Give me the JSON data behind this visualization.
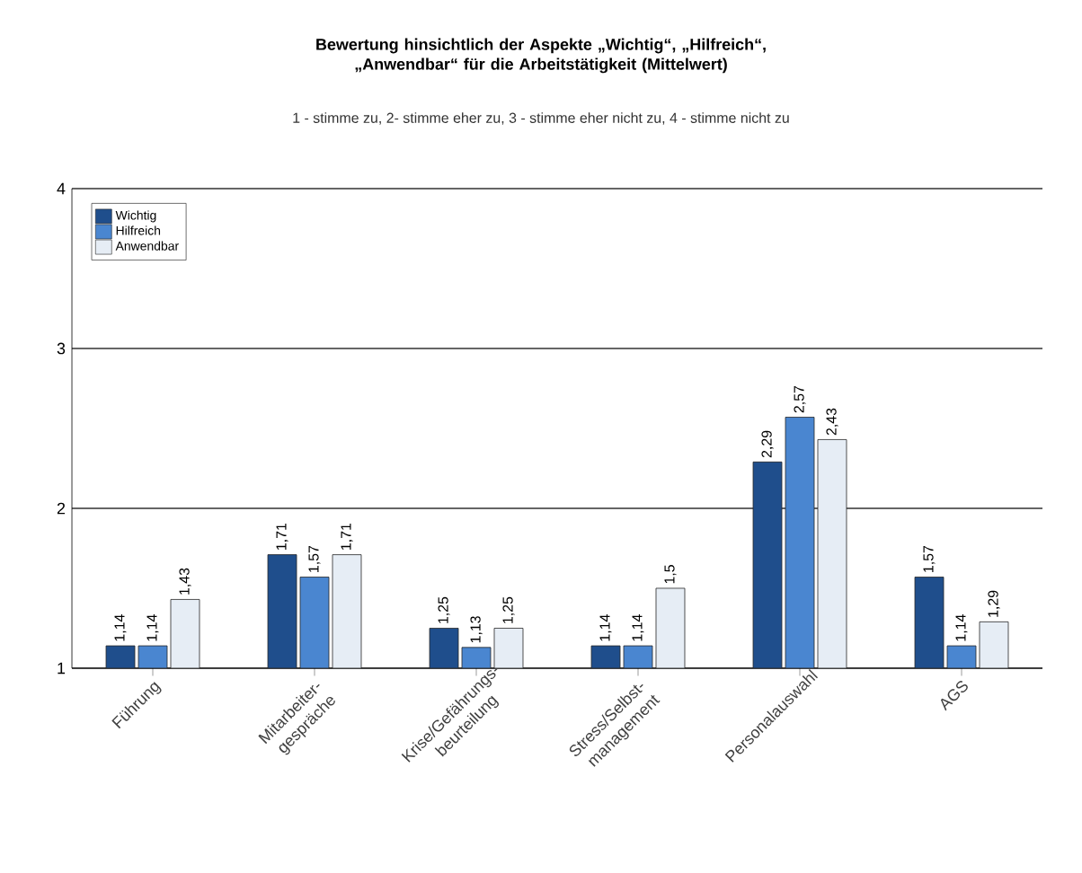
{
  "chart_data": {
    "type": "bar",
    "title": "Bewertung hinsichtlich der Aspekte „Wichtig“, „Hilfreich“, „Anwendbar“ für die Arbeitstätigkeit (Mittelwert)",
    "subtitle": "1 - stimme zu, 2- stimme eher zu, 3 - stimme eher nicht zu, 4 - stimme nicht zu",
    "categories": [
      "Führung",
      "Mitarbeiter-gespräche",
      "Krise/Gefährungs-beurteilung",
      "Stress/Selbst-management",
      "Personalauswahl",
      "AGS"
    ],
    "series": [
      {
        "name": "Wichtig",
        "color": "#1f4e8c",
        "values": [
          1.14,
          1.71,
          1.25,
          1.14,
          2.29,
          1.57
        ],
        "value_labels": [
          "1,14",
          "1,71",
          "1,25",
          "1,14",
          "2,29",
          "1,57"
        ]
      },
      {
        "name": "Hilfreich",
        "color": "#4a86d0",
        "values": [
          1.14,
          1.57,
          1.13,
          1.14,
          2.57,
          1.14
        ],
        "value_labels": [
          "1,14",
          "1,57",
          "1,13",
          "1,14",
          "2,57",
          "1,14"
        ]
      },
      {
        "name": "Anwendbar",
        "color": "#e6edf5",
        "values": [
          1.43,
          1.71,
          1.25,
          1.5,
          2.43,
          1.29
        ],
        "value_labels": [
          "1,43",
          "1,71",
          "1,25",
          "1,5",
          "2,43",
          "1,29"
        ]
      }
    ],
    "ylim": [
      1,
      4
    ],
    "yticks": [
      1,
      2,
      3,
      4
    ],
    "grid": "y",
    "legend": "top left"
  }
}
